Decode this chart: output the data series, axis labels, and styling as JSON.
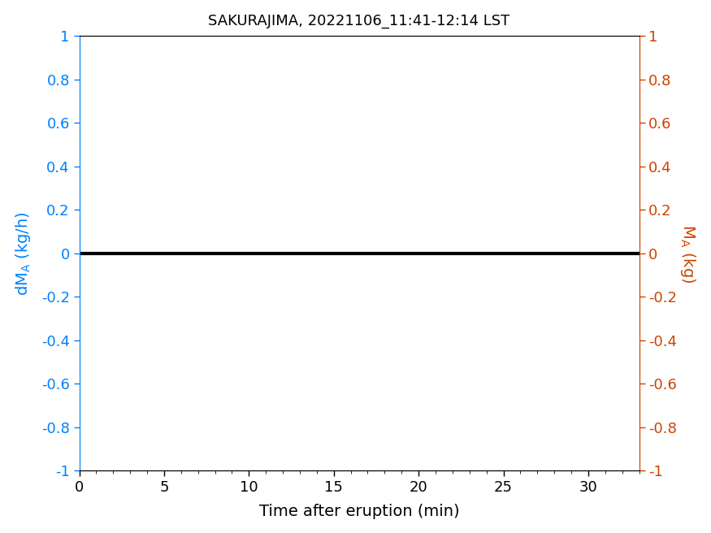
{
  "title": "SAKURAJIMA, 20221106_11:41-12:14 LST",
  "title_fontsize": 13,
  "xlabel": "Time after eruption (min)",
  "color_left": "#0080ff",
  "color_right": "#cc4400",
  "color_line": "black",
  "color_xtick": "#000000",
  "xlim": [
    0,
    33
  ],
  "ylim": [
    -1,
    1
  ],
  "xticks": [
    0,
    5,
    10,
    15,
    20,
    25,
    30
  ],
  "yticks": [
    -1,
    -0.8,
    -0.6,
    -0.4,
    -0.2,
    0,
    0.2,
    0.4,
    0.6,
    0.8,
    1
  ],
  "line_x": [
    0,
    33
  ],
  "line_y": [
    0,
    0
  ],
  "line_width": 3,
  "figsize": [
    8.75,
    6.56
  ],
  "dpi": 100
}
